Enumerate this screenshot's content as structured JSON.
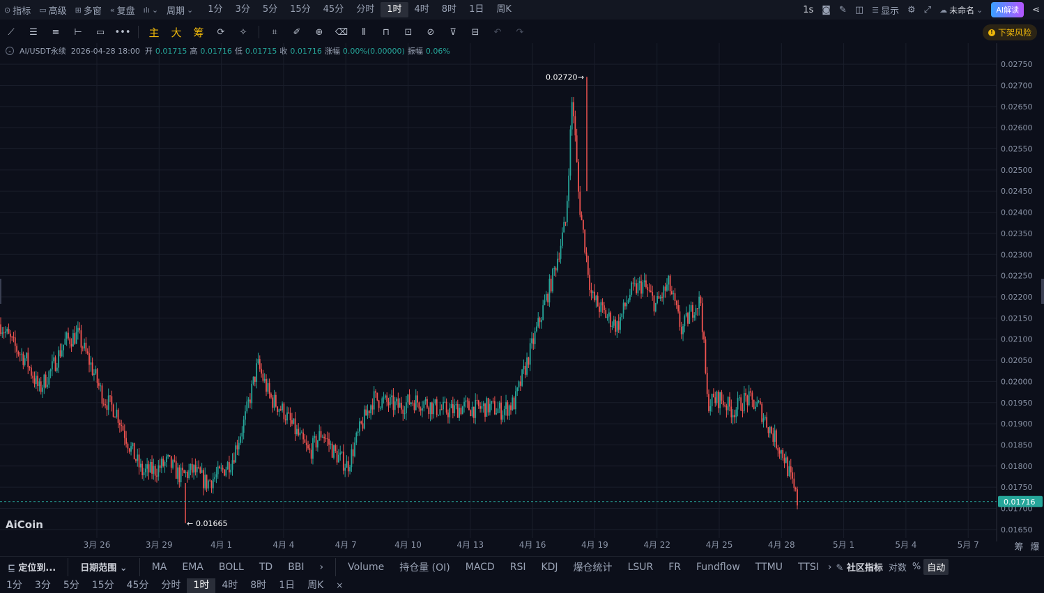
{
  "topbar": {
    "indicators": "指标",
    "advanced": "高级",
    "multi_window": "多窗",
    "replay": "复盘",
    "period": "周期",
    "periods": [
      "1分",
      "3分",
      "5分",
      "15分",
      "45分",
      "分时",
      "1时",
      "4时",
      "8时",
      "1日",
      "周K"
    ],
    "active_period": "1时",
    "interval": "1s",
    "display": "显示",
    "unnamed": "未命名",
    "ai_read": "AI解读"
  },
  "toolbar": {
    "main": "主",
    "big": "大",
    "chips": "筹",
    "risk_label": "下架风险"
  },
  "legend": {
    "symbol": "AI/USDT永续",
    "datetime": "2026-04-28 18:00",
    "open_label": "开",
    "open": "0.01715",
    "high_label": "高",
    "high": "0.01716",
    "low_label": "低",
    "low": "0.01715",
    "close_label": "收",
    "close": "0.01716",
    "change_label": "涨幅",
    "change": "0.00%(0.00000)",
    "amplitude_label": "振幅",
    "amplitude": "0.06%"
  },
  "chart_data": {
    "type": "candlestick",
    "title": "AI/USDT永续",
    "y_ticks": [
      "0.02750",
      "0.02700",
      "0.02650",
      "0.02600",
      "0.02550",
      "0.02500",
      "0.02450",
      "0.02400",
      "0.02350",
      "0.02300",
      "0.02250",
      "0.02200",
      "0.02150",
      "0.02100",
      "0.02050",
      "0.02000",
      "0.01950",
      "0.01900",
      "0.01850",
      "0.01800",
      "0.01750",
      "0.01700",
      "0.01650"
    ],
    "x_ticks": [
      "3月 26",
      "3月 29",
      "4月 1",
      "4月 4",
      "4月 7",
      "4月 10",
      "4月 13",
      "4月 16",
      "4月 19",
      "4月 22",
      "4月 25",
      "4月 28",
      "5月 1",
      "5月 4",
      "5月 7"
    ],
    "ylim": [
      0.0163,
      0.0277
    ],
    "high_marker": "0.02720",
    "low_marker": "0.01665",
    "current_price": "0.01716",
    "watermark": "AiCoin",
    "path": [
      [
        0,
        0.02135
      ],
      [
        4,
        0.02085
      ],
      [
        8,
        0.0205
      ],
      [
        12,
        0.0198
      ],
      [
        16,
        0.0203
      ],
      [
        20,
        0.02095
      ],
      [
        24,
        0.0211
      ],
      [
        28,
        0.0204
      ],
      [
        32,
        0.0196
      ],
      [
        36,
        0.0193
      ],
      [
        40,
        0.0185
      ],
      [
        44,
        0.01785
      ],
      [
        48,
        0.0179
      ],
      [
        52,
        0.0181
      ],
      [
        56,
        0.01775
      ],
      [
        60,
        0.0179
      ],
      [
        64,
        0.0176
      ],
      [
        68,
        0.0178
      ],
      [
        72,
        0.01815
      ],
      [
        76,
        0.0191
      ],
      [
        80,
        0.0204
      ],
      [
        84,
        0.0196
      ],
      [
        88,
        0.0193
      ],
      [
        92,
        0.0188
      ],
      [
        96,
        0.0183
      ],
      [
        100,
        0.0188
      ],
      [
        104,
        0.0183
      ],
      [
        108,
        0.018
      ],
      [
        112,
        0.0189
      ],
      [
        116,
        0.0196
      ],
      [
        120,
        0.0195
      ],
      [
        124,
        0.0194
      ],
      [
        128,
        0.01955
      ],
      [
        132,
        0.0195
      ],
      [
        136,
        0.01935
      ],
      [
        140,
        0.0193
      ],
      [
        144,
        0.0194
      ],
      [
        148,
        0.01935
      ],
      [
        152,
        0.0194
      ],
      [
        156,
        0.0193
      ],
      [
        160,
        0.0195
      ],
      [
        164,
        0.0205
      ],
      [
        168,
        0.0215
      ],
      [
        172,
        0.0225
      ],
      [
        176,
        0.0238
      ],
      [
        178,
        0.0268
      ],
      [
        180,
        0.0243
      ],
      [
        184,
        0.022
      ],
      [
        188,
        0.0216
      ],
      [
        192,
        0.0213
      ],
      [
        196,
        0.0221
      ],
      [
        200,
        0.0223
      ],
      [
        204,
        0.0218
      ],
      [
        208,
        0.0223
      ],
      [
        212,
        0.0212
      ],
      [
        216,
        0.0218
      ],
      [
        218,
        0.0219
      ],
      [
        220,
        0.0195
      ],
      [
        224,
        0.0196
      ],
      [
        228,
        0.0193
      ],
      [
        232,
        0.0196
      ],
      [
        236,
        0.0194
      ],
      [
        240,
        0.0188
      ],
      [
        244,
        0.0182
      ],
      [
        248,
        0.01716
      ]
    ]
  },
  "bottom_bar": {
    "locate": "定位到...",
    "date_range": "日期范围",
    "indicators_main": [
      "MA",
      "EMA",
      "BOLL",
      "TD",
      "BBI"
    ],
    "indicators_sub": [
      "Volume",
      "持仓量 (OI)",
      "MACD",
      "RSI",
      "KDJ",
      "爆仓统计",
      "LSUR",
      "FR",
      "Fundflow",
      "TTMU",
      "TTSI"
    ],
    "community": "社区指标",
    "log": "对数",
    "percent": "%",
    "auto": "自动",
    "chips": "筹",
    "liquidation": "爆"
  },
  "bottom_periods": {
    "items": [
      "1分",
      "3分",
      "5分",
      "15分",
      "45分",
      "分时",
      "1时",
      "4时",
      "8时",
      "1日",
      "周K"
    ],
    "active": "1时"
  },
  "colors": {
    "up": "#26a69a",
    "down": "#ef5350",
    "background": "#0c0f1a",
    "grid": "#1a1e2b",
    "price_tag": "#26a69a"
  }
}
